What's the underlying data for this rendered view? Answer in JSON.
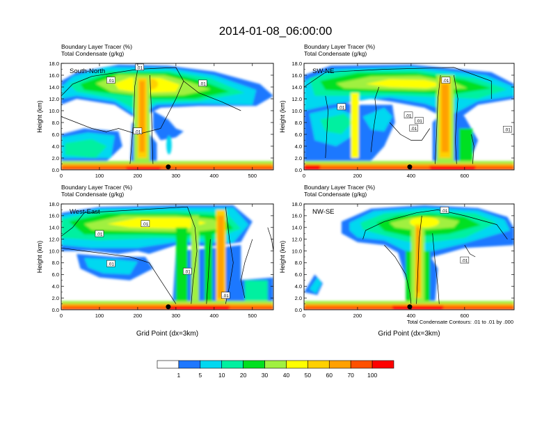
{
  "title": "2014-01-08_06:00:00",
  "footnote": "Total Condensate Contours: .01 to .01 by .000",
  "panels": [
    {
      "label": "South-North",
      "title_lines": [
        "Boundary Layer Tracer    (%)",
        "Total Condensate    (g/kg)"
      ],
      "ylabel": "Height (km)",
      "xlabel": "",
      "xticks": [
        0,
        100,
        200,
        300,
        400,
        500
      ],
      "xlim": [
        0,
        555
      ],
      "yticks": [
        "0.0",
        "2.0",
        "4.0",
        "6.0",
        "8.0",
        "10.0",
        "12.0",
        "14.0",
        "16.0",
        "18.0"
      ],
      "ylim": [
        0,
        18
      ],
      "marker_x": 280,
      "contour_labels": [
        ".01",
        ".01",
        ".01",
        ".01"
      ]
    },
    {
      "label": "SW-NE",
      "title_lines": [
        "Boundary Layer Tracer    (%)",
        "Total Condensate    (g/kg)"
      ],
      "ylabel": "Height (km)",
      "xlabel": "",
      "xticks": [
        0,
        200,
        400,
        600
      ],
      "xlim": [
        0,
        785
      ],
      "yticks": [
        "0.0",
        "2.0",
        "4.0",
        "6.0",
        "8.0",
        "10.0",
        "12.0",
        "14.0",
        "16.0",
        "18.0"
      ],
      "ylim": [
        0,
        18
      ],
      "marker_x": 395,
      "contour_labels": [
        ".01",
        ".01",
        ".01",
        ".01",
        ".01",
        ".01"
      ]
    },
    {
      "label": "West-East",
      "title_lines": [
        "Boundary Layer Tracer    (%)",
        "Total Condensate    (g/kg)"
      ],
      "ylabel": "Height (km)",
      "xlabel": "Grid Point (dx=3km)",
      "xticks": [
        0,
        100,
        200,
        300,
        400,
        500
      ],
      "xlim": [
        0,
        555
      ],
      "yticks": [
        "0.0",
        "2.0",
        "4.0",
        "6.0",
        "8.0",
        "10.0",
        "12.0",
        "14.0",
        "16.0",
        "18.0"
      ],
      "ylim": [
        0,
        18
      ],
      "marker_x": 280,
      "contour_labels": [
        ".01",
        ".01",
        ".01",
        ".01",
        ".01"
      ]
    },
    {
      "label": "NW-SE",
      "title_lines": [
        "Boundary Layer Tracer    (%)",
        "Total Condensate    (g/kg)"
      ],
      "ylabel": "Height (km)",
      "xlabel": "Grid Point (dx=3km)",
      "xticks": [
        0,
        200,
        400,
        600
      ],
      "xlim": [
        0,
        785
      ],
      "yticks": [
        "0.0",
        "2.0",
        "4.0",
        "6.0",
        "8.0",
        "10.0",
        "12.0",
        "14.0",
        "16.0",
        "18.0"
      ],
      "ylim": [
        0,
        18
      ],
      "marker_x": 395,
      "contour_labels": [
        ".01",
        ".01"
      ]
    }
  ],
  "colorbar": {
    "levels": [
      "1",
      "5",
      "10",
      "20",
      "30",
      "40",
      "50",
      "60",
      "70",
      "100"
    ],
    "colors": [
      "#ffffff",
      "#1e78ff",
      "#00d8f0",
      "#00f0a0",
      "#00e020",
      "#a0f040",
      "#ffff00",
      "#ffd000",
      "#ffa000",
      "#ff5000",
      "#ff0000"
    ]
  },
  "chart_data": {
    "type": "heatmap",
    "title": "2014-01-08_06:00:00",
    "variables": [
      "Boundary Layer Tracer (%)",
      "Total Condensate (g/kg)"
    ],
    "ylim": [
      0,
      18
    ],
    "contour_levels": [
      0.01
    ],
    "colorbar_levels": [
      1,
      5,
      10,
      20,
      30,
      40,
      50,
      60,
      70,
      100
    ],
    "cross_sections": [
      {
        "name": "South-North",
        "xlim": [
          0,
          555
        ],
        "ylim": [
          0,
          18
        ],
        "features": [
          {
            "kind": "anvil",
            "x_range": [
              0,
              520
            ],
            "z_range": [
              10.5,
              17.5
            ]
          },
          {
            "kind": "updraft",
            "x_range": [
              185,
              240
            ],
            "z_range": [
              0,
              17.5
            ]
          },
          {
            "kind": "lower_cloud",
            "x_range": [
              0,
              150
            ],
            "z_range": [
              1.5,
              7
            ]
          },
          {
            "kind": "boundary_layer",
            "x_range": [
              0,
              555
            ],
            "z_range": [
              0,
              1.5
            ]
          }
        ]
      },
      {
        "name": "SW-NE",
        "xlim": [
          0,
          785
        ],
        "ylim": [
          0,
          18
        ],
        "features": [
          {
            "kind": "anvil",
            "x_range": [
              0,
              785
            ],
            "z_range": [
              10.5,
              17.5
            ]
          },
          {
            "kind": "updraft",
            "x_range": [
              490,
              560
            ],
            "z_range": [
              0,
              17.5
            ]
          },
          {
            "kind": "lower_cloud",
            "x_range": [
              0,
              330
            ],
            "z_range": [
              1.5,
              10
            ]
          },
          {
            "kind": "boundary_layer",
            "x_range": [
              0,
              785
            ],
            "z_range": [
              0,
              1.5
            ]
          }
        ]
      },
      {
        "name": "West-East",
        "xlim": [
          0,
          555
        ],
        "ylim": [
          0,
          18
        ],
        "features": [
          {
            "kind": "anvil",
            "x_range": [
              0,
              500
            ],
            "z_range": [
              10,
              17.5
            ]
          },
          {
            "kind": "updraft",
            "x_range": [
              300,
              450
            ],
            "z_range": [
              0,
              17.5
            ]
          },
          {
            "kind": "lower_cloud",
            "x_range": [
              40,
              220
            ],
            "z_range": [
              5,
              9
            ]
          },
          {
            "kind": "boundary_layer",
            "x_range": [
              0,
              555
            ],
            "z_range": [
              0,
              1.5
            ]
          }
        ]
      },
      {
        "name": "NW-SE",
        "xlim": [
          0,
          785
        ],
        "ylim": [
          0,
          18
        ],
        "features": [
          {
            "kind": "anvil",
            "x_range": [
              230,
              785
            ],
            "z_range": [
              10,
              17.5
            ]
          },
          {
            "kind": "updraft",
            "x_range": [
              370,
              470
            ],
            "z_range": [
              0,
              17.5
            ]
          },
          {
            "kind": "lower_cloud",
            "x_range": [
              0,
              120
            ],
            "z_range": [
              3,
              6
            ]
          },
          {
            "kind": "boundary_layer",
            "x_range": [
              0,
              785
            ],
            "z_range": [
              0,
              1.5
            ]
          }
        ]
      }
    ]
  }
}
